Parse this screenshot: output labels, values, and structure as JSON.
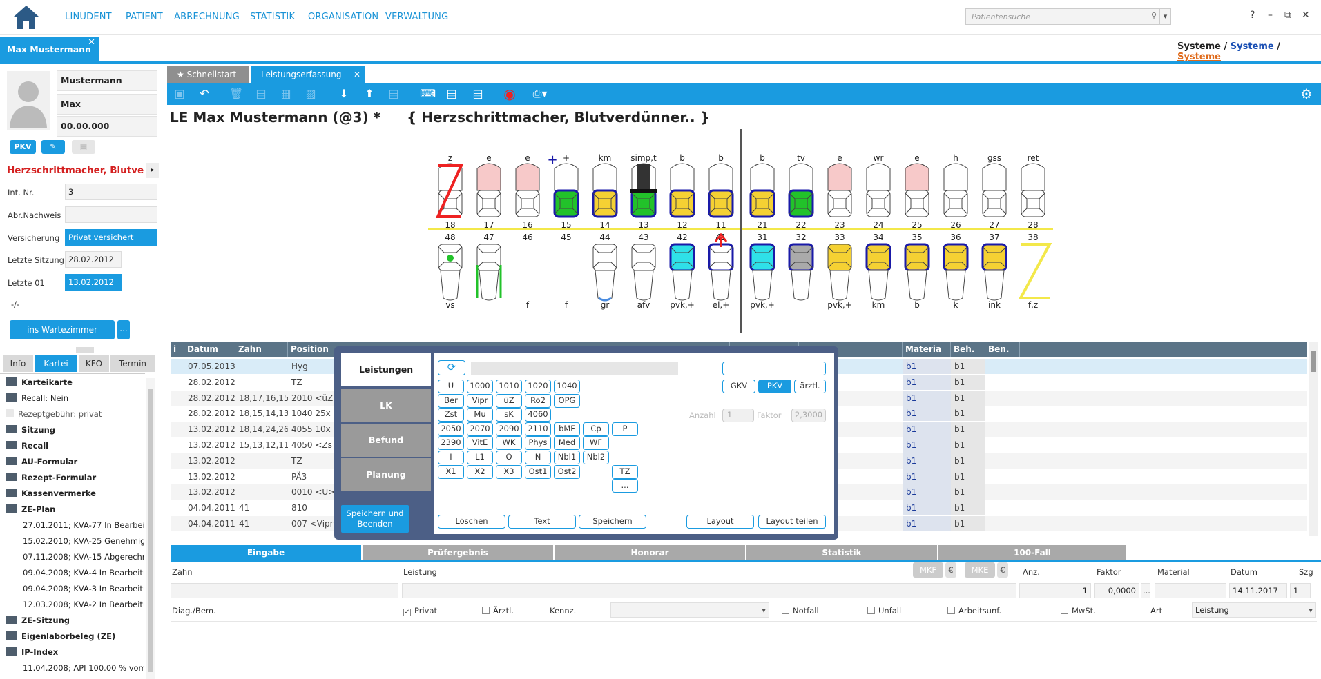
{
  "nav": {
    "items": [
      "LINUDENT",
      "PATIENT",
      "ABRECHNUNG",
      "STATISTIK",
      "ORGANISATION",
      "VERWALTUNG"
    ],
    "search_placeholder": "Patientensuche",
    "help": "?",
    "min": "–",
    "restore": "⧉",
    "close": "✕"
  },
  "patient_tab": {
    "label": "Max Mustermann",
    "close": "✕"
  },
  "systems": {
    "a": "Systeme",
    "sep": " / ",
    "b": "Systeme",
    "c": "Systeme"
  },
  "patient": {
    "lastname": "Mustermann",
    "firstname": "Max",
    "dob": "00.00.000",
    "badges": {
      "pkv": "PKV"
    },
    "warning": "Herzschrittmacher, Blutve",
    "fields": [
      {
        "label": "Int. Nr.",
        "value": "3"
      },
      {
        "label": "Abr.Nachweis",
        "value": ""
      },
      {
        "label": "Versicherung",
        "value": "Privat versichert"
      },
      {
        "label": "Letzte Sitzung",
        "value": "28.02.2012"
      },
      {
        "label": "Letzte 01",
        "value": "13.02.2012"
      }
    ],
    "dash": "-/-",
    "waiting_button": "ins Wartezimmer",
    "more": "..."
  },
  "left_tabs": [
    "Info",
    "Kartei",
    "KFO",
    "Termin"
  ],
  "tree": [
    {
      "label": "Karteikarte",
      "bold": true,
      "icon": "card"
    },
    {
      "label": "Recall: Nein",
      "bold": false,
      "icon": "card"
    },
    {
      "label": "Rezeptgebühr: privat",
      "bold": false,
      "icon": "euro",
      "muted": true
    },
    {
      "label": "Sitzung",
      "bold": true,
      "icon": "folder"
    },
    {
      "label": "Recall",
      "bold": true,
      "icon": "folder"
    },
    {
      "label": "AU-Formular",
      "bold": true,
      "icon": "folder"
    },
    {
      "label": "Rezept-Formular",
      "bold": true,
      "icon": "folder"
    },
    {
      "label": "Kassenvermerke",
      "bold": true,
      "icon": "folder"
    },
    {
      "label": "ZE-Plan",
      "bold": true,
      "icon": "folder-open"
    },
    {
      "label": "27.01.2011; KVA-77 In Bearbeitu",
      "bold": false,
      "icon": "none"
    },
    {
      "label": "15.02.2010; KVA-25 Genehmigt",
      "bold": false,
      "icon": "none"
    },
    {
      "label": "07.11.2008; KVA-15 Abgerechne",
      "bold": false,
      "icon": "none"
    },
    {
      "label": "09.04.2008; KVA-4 In Bearbeitun",
      "bold": false,
      "icon": "none"
    },
    {
      "label": "09.04.2008; KVA-3 In Bearbeitun",
      "bold": false,
      "icon": "none"
    },
    {
      "label": "12.03.2008; KVA-2 In Bearbeitun",
      "bold": false,
      "icon": "none"
    },
    {
      "label": "ZE-Sitzung",
      "bold": true,
      "icon": "folder"
    },
    {
      "label": "Eigenlaborbeleg (ZE)",
      "bold": true,
      "icon": "folder"
    },
    {
      "label": "IP-Index",
      "bold": true,
      "icon": "folder-open"
    },
    {
      "label": "11.04.2008; API 100.00 % vom 1",
      "bold": false,
      "icon": "none"
    }
  ],
  "main_tabs": {
    "quick": "Schnellstart",
    "active": "Leistungserfassung",
    "close": "✕"
  },
  "title": {
    "main": "LE Max Mustermann  (@3) *",
    "risk": "{ Herzschrittmacher, Blutverdünner.. }"
  },
  "chart_upper_labels": [
    "z",
    "e",
    "e",
    "+",
    "km",
    "simp,t",
    "b",
    "b",
    "b",
    "tv",
    "e",
    "wr",
    "e",
    "h",
    "gss",
    "ret"
  ],
  "chart_upper_numbers": [
    "18",
    "17",
    "16",
    "15",
    "14",
    "13",
    "12",
    "11",
    "21",
    "22",
    "23",
    "24",
    "25",
    "26",
    "27",
    "28"
  ],
  "chart_lower_numbers": [
    "48",
    "47",
    "46",
    "45",
    "44",
    "43",
    "42",
    "41",
    "31",
    "32",
    "33",
    "34",
    "35",
    "36",
    "37",
    "38"
  ],
  "chart_lower_labels": [
    "vs",
    "",
    "f",
    "f",
    "gr",
    "afv",
    "pvk,+",
    "el,+",
    "pvk,+",
    "",
    "pvk,+",
    "km",
    "b",
    "k",
    "ink",
    "f,z"
  ],
  "colors": {
    "accent": "#1a9be0",
    "yellow": "#f5d133",
    "green": "#22c22a",
    "cyan": "#2fe0e8",
    "red": "#e22",
    "navy": "#1a1aa8"
  },
  "table": {
    "headers": [
      "i",
      "Datum",
      "Zahn",
      "Position",
      "",
      "",
      "",
      "",
      "Materia",
      "Beh.",
      "Ben."
    ],
    "rows": [
      {
        "datum": "07.05.2013",
        "zahn": "",
        "pos": "Hyg",
        "mat": "",
        "beh": "b1",
        "ben": "b1"
      },
      {
        "datum": "28.02.2012",
        "zahn": "",
        "pos": "TZ",
        "mat": "",
        "beh": "b1",
        "ben": "b1"
      },
      {
        "datum": "28.02.2012",
        "zahn": "18,17,16,15,14",
        "pos": "2010 <üZ",
        "mat": "",
        "beh": "b1",
        "ben": "b1"
      },
      {
        "datum": "28.02.2012",
        "zahn": "18,15,14,13,12",
        "pos": "1040  25x",
        "mat": "",
        "beh": "b1",
        "ben": "b1"
      },
      {
        "datum": "13.02.2012",
        "zahn": "18,14,24,26,27",
        "pos": "4055  10x",
        "mat": "",
        "beh": "b1",
        "ben": "b1"
      },
      {
        "datum": "13.02.2012",
        "zahn": "15,13,12,11,21",
        "pos": "4050 <Zs",
        "mat": "",
        "beh": "b1",
        "ben": "b1"
      },
      {
        "datum": "13.02.2012",
        "zahn": "",
        "pos": "TZ",
        "mat": "",
        "beh": "b1",
        "ben": "b1"
      },
      {
        "datum": "13.02.2012",
        "zahn": "",
        "pos": "PÄ3",
        "mat": "",
        "beh": "b1",
        "ben": "b1"
      },
      {
        "datum": "13.02.2012",
        "zahn": "",
        "pos": "0010 <U>",
        "mat": "",
        "beh": "b1",
        "ben": "b1"
      },
      {
        "datum": "04.04.2011",
        "zahn": "41",
        "pos": "810",
        "mat": "",
        "beh": "b1",
        "ben": "b1"
      },
      {
        "datum": "04.04.2011",
        "zahn": "41",
        "pos": "007 <Vipr",
        "mat": "",
        "beh": "b1",
        "ben": "b1"
      }
    ]
  },
  "popup": {
    "side_tabs": [
      "Leistungen",
      "LK",
      "Befund",
      "Planung"
    ],
    "save_end": "Speichern und Beenden",
    "refresh_icon": "⟳",
    "kasse": [
      "GKV",
      "PKV",
      "ärztl."
    ],
    "anzahl_label": "Anzahl",
    "anzahl_value": "1",
    "faktor_label": "Faktor",
    "faktor_value": "2,3000",
    "grid": [
      [
        "U",
        "1000",
        "1010",
        "1020",
        "1040"
      ],
      [
        "Ber",
        "Vipr",
        "üZ",
        "Rö2",
        "OPG"
      ],
      [
        "Zst",
        "Mu",
        "sK",
        "4060"
      ],
      [
        "2050",
        "2070",
        "2090",
        "2110",
        "bMF",
        "Cp",
        "P"
      ],
      [
        "2390",
        "VitE",
        "WK",
        "Phys",
        "Med",
        "WF"
      ],
      [
        "I",
        "L1",
        "O",
        "N",
        "Nbl1",
        "Nbl2"
      ],
      [
        "X1",
        "X2",
        "X3",
        "Ost1",
        "Ost2",
        "",
        "TZ"
      ],
      [
        "",
        "",
        "",
        "",
        "",
        "",
        "..."
      ]
    ],
    "bottom": [
      "Löschen",
      "Text",
      "Speichern",
      "Layout",
      "Layout teilen"
    ]
  },
  "bottom_tabs": [
    "Eingabe",
    "Prüfergebnis",
    "Honorar",
    "Statistik",
    "100-Fall"
  ],
  "entry": {
    "labels": {
      "zahn": "Zahn",
      "leistung": "Leistung",
      "anz": "Anz.",
      "faktor": "Faktor",
      "material": "Material",
      "datum": "Datum",
      "szg": "Szg"
    },
    "mkf": "MKF",
    "mke": "MKE",
    "euro": "€",
    "anz": "1",
    "faktor": "0,0000",
    "datum": "14.11.2017",
    "szg": "1",
    "dots": "...",
    "diag": "Diag./Bem.",
    "privat": "Privat",
    "aerztl": "Ärztl.",
    "kennz": "Kennz.",
    "notfall": "Notfall",
    "unfall": "Unfall",
    "arbeitsunf": "Arbeitsunf.",
    "mwst": "MwSt.",
    "art": "Art",
    "art_value": "Leistung"
  }
}
